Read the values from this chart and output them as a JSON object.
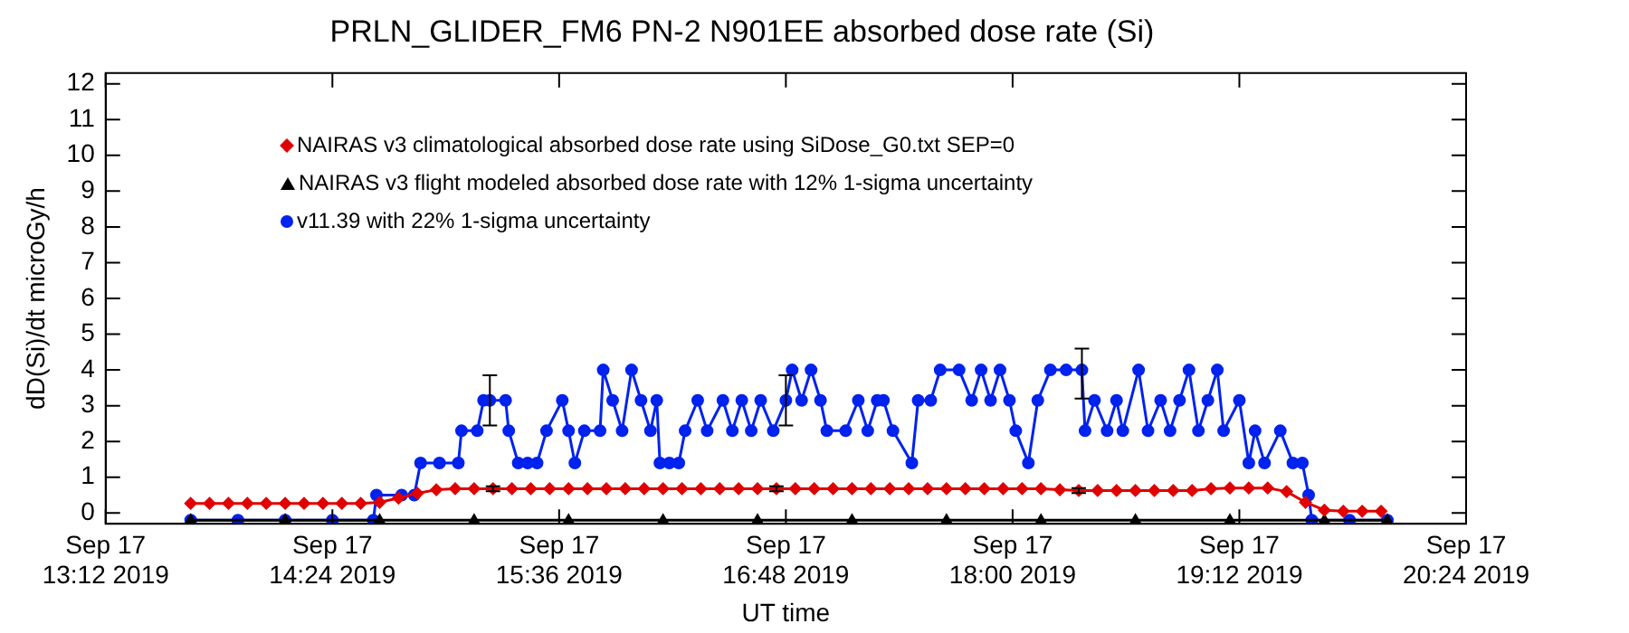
{
  "chart_data": {
    "type": "line",
    "title": "PRLN_GLIDER_FM6 PN-2 N901EE absorbed dose rate (Si)",
    "xlabel": "UT time",
    "ylabel": "dD(Si)/dt microGy/h",
    "xlim": [
      "2019-09-17T13:12",
      "2019-09-17T20:24"
    ],
    "xticks": [
      {
        "value": "2019-09-17T13:12",
        "label": "Sep 17\n13:12 2019"
      },
      {
        "value": "2019-09-17T14:24",
        "label": "Sep 17\n14:24 2019"
      },
      {
        "value": "2019-09-17T15:36",
        "label": "Sep 17\n15:36 2019"
      },
      {
        "value": "2019-09-17T16:48",
        "label": "Sep 17\n16:48 2019"
      },
      {
        "value": "2019-09-17T18:00",
        "label": "Sep 17\n18:00 2019"
      },
      {
        "value": "2019-09-17T19:12",
        "label": "Sep 17\n19:12 2019"
      },
      {
        "value": "2019-09-17T20:24",
        "label": "Sep 17\n20:24 2019"
      }
    ],
    "ylim": [
      -0.3,
      12.3
    ],
    "yticks": [
      0,
      1,
      2,
      3,
      4,
      5,
      6,
      7,
      8,
      9,
      10,
      11,
      12
    ],
    "grid": false,
    "legend": "top left",
    "series": [
      {
        "name": "NAIRAS v3 climatological absorbed dose rate using SiDose_G0.txt SEP=0",
        "color": "#e00000",
        "marker": "diamond",
        "x": [
          "2019-09-17T13:39",
          "2019-09-17T13:45",
          "2019-09-17T13:51",
          "2019-09-17T13:57",
          "2019-09-17T14:03",
          "2019-09-17T14:09",
          "2019-09-17T14:15",
          "2019-09-17T14:21",
          "2019-09-17T14:27",
          "2019-09-17T14:33",
          "2019-09-17T14:39",
          "2019-09-17T14:45",
          "2019-09-17T14:51",
          "2019-09-17T14:57",
          "2019-09-17T15:03",
          "2019-09-17T15:09",
          "2019-09-17T15:15",
          "2019-09-17T15:21",
          "2019-09-17T15:27",
          "2019-09-17T15:33",
          "2019-09-17T15:39",
          "2019-09-17T15:45",
          "2019-09-17T15:51",
          "2019-09-17T15:57",
          "2019-09-17T16:03",
          "2019-09-17T16:09",
          "2019-09-17T16:15",
          "2019-09-17T16:21",
          "2019-09-17T16:27",
          "2019-09-17T16:33",
          "2019-09-17T16:39",
          "2019-09-17T16:45",
          "2019-09-17T16:51",
          "2019-09-17T16:57",
          "2019-09-17T17:03",
          "2019-09-17T17:09",
          "2019-09-17T17:15",
          "2019-09-17T17:21",
          "2019-09-17T17:27",
          "2019-09-17T17:33",
          "2019-09-17T17:39",
          "2019-09-17T17:45",
          "2019-09-17T17:51",
          "2019-09-17T17:57",
          "2019-09-17T18:03",
          "2019-09-17T18:09",
          "2019-09-17T18:15",
          "2019-09-17T18:21",
          "2019-09-17T18:27",
          "2019-09-17T18:33",
          "2019-09-17T18:39",
          "2019-09-17T18:45",
          "2019-09-17T18:51",
          "2019-09-17T18:57",
          "2019-09-17T19:03",
          "2019-09-17T19:09",
          "2019-09-17T19:15",
          "2019-09-17T19:21",
          "2019-09-17T19:27",
          "2019-09-17T19:33",
          "2019-09-17T19:39",
          "2019-09-17T19:45",
          "2019-09-17T19:51",
          "2019-09-17T19:57"
        ],
        "values": [
          0.27,
          0.27,
          0.27,
          0.27,
          0.27,
          0.27,
          0.27,
          0.27,
          0.27,
          0.27,
          0.3,
          0.42,
          0.55,
          0.65,
          0.68,
          0.68,
          0.68,
          0.68,
          0.68,
          0.68,
          0.68,
          0.68,
          0.68,
          0.68,
          0.68,
          0.68,
          0.68,
          0.68,
          0.68,
          0.68,
          0.68,
          0.68,
          0.68,
          0.68,
          0.68,
          0.68,
          0.68,
          0.68,
          0.68,
          0.68,
          0.68,
          0.68,
          0.68,
          0.68,
          0.68,
          0.68,
          0.65,
          0.63,
          0.63,
          0.63,
          0.63,
          0.63,
          0.63,
          0.63,
          0.68,
          0.7,
          0.7,
          0.7,
          0.6,
          0.3,
          0.08,
          0.05,
          0.05,
          0.05
        ],
        "errors": [
          null,
          null,
          null,
          null,
          null,
          null,
          null,
          null,
          null,
          null,
          null,
          null,
          null,
          null,
          null,
          null,
          0.07,
          null,
          null,
          null,
          null,
          null,
          null,
          null,
          null,
          null,
          null,
          null,
          null,
          null,
          null,
          0.07,
          null,
          null,
          null,
          null,
          null,
          null,
          null,
          null,
          null,
          null,
          null,
          null,
          null,
          null,
          null,
          0.07,
          null,
          null,
          null,
          null,
          null,
          null,
          null,
          null,
          null,
          null,
          null,
          null,
          null,
          null,
          null,
          null
        ]
      },
      {
        "name": "NAIRAS v3 flight modeled absorbed dose rate with 12% 1-sigma uncertainty",
        "color": "#000000",
        "marker": "triangle",
        "x": [
          "2019-09-17T13:39",
          "2019-09-17T14:09",
          "2019-09-17T14:39",
          "2019-09-17T15:09",
          "2019-09-17T15:39",
          "2019-09-17T16:09",
          "2019-09-17T16:39",
          "2019-09-17T17:09",
          "2019-09-17T17:39",
          "2019-09-17T18:09",
          "2019-09-17T18:39",
          "2019-09-17T19:09",
          "2019-09-17T19:39",
          "2019-09-17T19:59"
        ],
        "values": [
          -0.2,
          -0.2,
          -0.2,
          -0.2,
          -0.2,
          -0.2,
          -0.2,
          -0.2,
          -0.2,
          -0.2,
          -0.2,
          -0.2,
          -0.2,
          -0.2
        ]
      },
      {
        "name": "v11.39 with 22% 1-sigma uncertainty",
        "color": "#0022ee",
        "marker": "circle",
        "x": [
          "2019-09-17T13:39",
          "2019-09-17T13:54",
          "2019-09-17T14:09",
          "2019-09-17T14:24",
          "2019-09-17T14:37",
          "2019-09-17T14:38",
          "2019-09-17T14:46",
          "2019-09-17T14:50",
          "2019-09-17T14:52",
          "2019-09-17T14:58",
          "2019-09-17T15:04",
          "2019-09-17T15:05",
          "2019-09-17T15:10",
          "2019-09-17T15:12",
          "2019-09-17T15:14",
          "2019-09-17T15:19",
          "2019-09-17T15:20",
          "2019-09-17T15:23",
          "2019-09-17T15:26",
          "2019-09-17T15:29",
          "2019-09-17T15:32",
          "2019-09-17T15:37",
          "2019-09-17T15:39",
          "2019-09-17T15:41",
          "2019-09-17T15:44",
          "2019-09-17T15:49",
          "2019-09-17T15:50",
          "2019-09-17T15:53",
          "2019-09-17T15:56",
          "2019-09-17T15:59",
          "2019-09-17T16:02",
          "2019-09-17T16:05",
          "2019-09-17T16:07",
          "2019-09-17T16:08",
          "2019-09-17T16:11",
          "2019-09-17T16:14",
          "2019-09-17T16:16",
          "2019-09-17T16:20",
          "2019-09-17T16:23",
          "2019-09-17T16:28",
          "2019-09-17T16:31",
          "2019-09-17T16:34",
          "2019-09-17T16:37",
          "2019-09-17T16:40",
          "2019-09-17T16:44",
          "2019-09-17T16:48",
          "2019-09-17T16:50",
          "2019-09-17T16:53",
          "2019-09-17T16:56",
          "2019-09-17T16:59",
          "2019-09-17T17:01",
          "2019-09-17T17:07",
          "2019-09-17T17:11",
          "2019-09-17T17:14",
          "2019-09-17T17:17",
          "2019-09-17T17:19",
          "2019-09-17T17:22",
          "2019-09-17T17:28",
          "2019-09-17T17:30",
          "2019-09-17T17:34",
          "2019-09-17T17:37",
          "2019-09-17T17:43",
          "2019-09-17T17:47",
          "2019-09-17T17:50",
          "2019-09-17T17:53",
          "2019-09-17T17:56",
          "2019-09-17T17:59",
          "2019-09-17T18:01",
          "2019-09-17T18:05",
          "2019-09-17T18:08",
          "2019-09-17T18:12",
          "2019-09-17T18:17",
          "2019-09-17T18:22",
          "2019-09-17T18:23",
          "2019-09-17T18:26",
          "2019-09-17T18:30",
          "2019-09-17T18:33",
          "2019-09-17T18:35",
          "2019-09-17T18:40",
          "2019-09-17T18:43",
          "2019-09-17T18:47",
          "2019-09-17T18:50",
          "2019-09-17T18:53",
          "2019-09-17T18:56",
          "2019-09-17T18:59",
          "2019-09-17T19:02",
          "2019-09-17T19:05",
          "2019-09-17T19:07",
          "2019-09-17T19:12",
          "2019-09-17T19:15",
          "2019-09-17T19:17",
          "2019-09-17T19:20",
          "2019-09-17T19:25",
          "2019-09-17T19:29",
          "2019-09-17T19:32",
          "2019-09-17T19:34",
          "2019-09-17T19:35",
          "2019-09-17T19:47",
          "2019-09-17T19:59"
        ],
        "values": [
          -0.2,
          -0.2,
          -0.2,
          -0.2,
          -0.2,
          0.5,
          0.5,
          0.5,
          1.4,
          1.4,
          1.4,
          2.3,
          2.3,
          3.15,
          3.15,
          3.15,
          2.3,
          1.4,
          1.4,
          1.4,
          2.3,
          3.15,
          2.3,
          1.4,
          2.3,
          2.3,
          4.0,
          3.15,
          2.3,
          4.0,
          3.15,
          2.3,
          3.15,
          1.4,
          1.4,
          1.4,
          2.3,
          3.15,
          2.3,
          3.15,
          2.3,
          3.15,
          2.3,
          3.15,
          2.3,
          3.15,
          4.0,
          3.15,
          4.0,
          3.15,
          2.3,
          2.3,
          3.15,
          2.3,
          3.15,
          3.15,
          2.3,
          1.4,
          3.15,
          3.15,
          4.0,
          4.0,
          3.15,
          4.0,
          3.15,
          4.0,
          3.15,
          2.3,
          1.4,
          3.15,
          4.0,
          4.0,
          4.0,
          2.3,
          3.15,
          2.3,
          3.15,
          2.3,
          4.0,
          2.3,
          3.15,
          2.3,
          3.15,
          4.0,
          2.3,
          3.15,
          4.0,
          2.3,
          3.15,
          1.4,
          2.3,
          1.4,
          2.3,
          1.4,
          1.4,
          0.5,
          -0.2,
          -0.2,
          -0.2
        ],
        "errors": [
          null,
          null,
          null,
          null,
          null,
          null,
          null,
          null,
          null,
          null,
          null,
          null,
          null,
          null,
          [
            2.45,
            3.85
          ],
          null,
          null,
          null,
          null,
          null,
          null,
          null,
          null,
          null,
          null,
          null,
          null,
          null,
          null,
          null,
          null,
          null,
          null,
          null,
          null,
          null,
          null,
          null,
          null,
          null,
          null,
          null,
          null,
          null,
          null,
          [
            2.45,
            3.85
          ],
          null,
          null,
          null,
          null,
          null,
          null,
          null,
          null,
          null,
          null,
          null,
          null,
          null,
          null,
          null,
          null,
          null,
          null,
          null,
          null,
          null,
          null,
          null,
          null,
          null,
          null,
          [
            3.2,
            4.6
          ],
          null,
          null,
          null,
          null,
          null,
          null,
          null,
          null,
          null,
          null,
          null,
          null,
          null,
          null,
          null,
          null,
          null,
          null,
          null,
          null,
          null,
          null,
          null,
          null,
          null,
          null
        ]
      }
    ]
  }
}
